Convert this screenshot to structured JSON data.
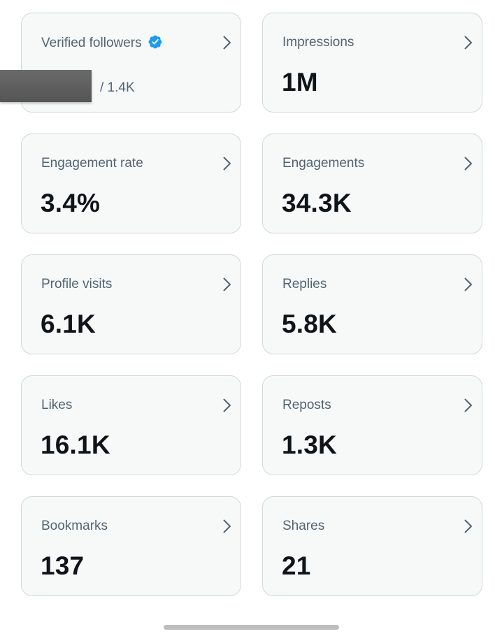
{
  "metrics": {
    "verified_followers": {
      "label": "Verified followers",
      "total": "/ 1.4K"
    },
    "impressions": {
      "label": "Impressions",
      "value": "1M"
    },
    "engagement_rate": {
      "label": "Engagement rate",
      "value": "3.4%"
    },
    "engagements": {
      "label": "Engagements",
      "value": "34.3K"
    },
    "profile_visits": {
      "label": "Profile visits",
      "value": "6.1K"
    },
    "replies": {
      "label": "Replies",
      "value": "5.8K"
    },
    "likes": {
      "label": "Likes",
      "value": "16.1K"
    },
    "reposts": {
      "label": "Reposts",
      "value": "1.3K"
    },
    "bookmarks": {
      "label": "Bookmarks",
      "value": "137"
    },
    "shares": {
      "label": "Shares",
      "value": "21"
    }
  },
  "icons": {
    "verified": "verified-badge-icon",
    "chevron": "chevron-right-icon"
  },
  "colors": {
    "card_background": "#f7f9f9",
    "card_border": "#cfd9de",
    "label_text": "#536471",
    "value_text": "#0f1419",
    "verified_blue": "#1d9bf0",
    "redaction": "#5e5e5e"
  }
}
